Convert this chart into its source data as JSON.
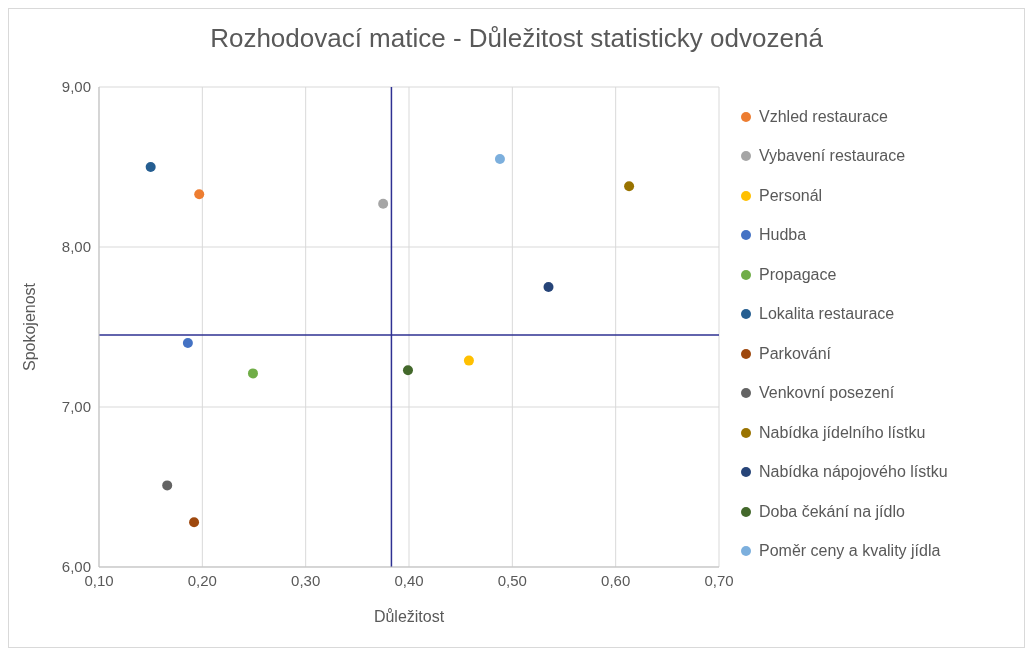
{
  "chart_data": {
    "type": "scatter",
    "title": "Rozhodovací matice - Důležitost statisticky odvozená",
    "xlabel": "Důležitost",
    "ylabel": "Spokojenost",
    "xlim": [
      0.1,
      0.7
    ],
    "xticks": [
      {
        "value": 0.1,
        "label": "0,10"
      },
      {
        "value": 0.2,
        "label": "0,20"
      },
      {
        "value": 0.3,
        "label": "0,30"
      },
      {
        "value": 0.4,
        "label": "0,40"
      },
      {
        "value": 0.5,
        "label": "0,50"
      },
      {
        "value": 0.6,
        "label": "0,60"
      },
      {
        "value": 0.7,
        "label": "0,70"
      }
    ],
    "ylim": [
      6,
      9
    ],
    "yticks": [
      {
        "value": 6,
        "label": "6,00"
      },
      {
        "value": 7,
        "label": "7,00"
      },
      {
        "value": 8,
        "label": "8,00"
      },
      {
        "value": 9,
        "label": "9,00"
      }
    ],
    "grid": true,
    "legend": "right",
    "marker": "circle",
    "ref_lines": [
      {
        "axis": "x",
        "value": 0.383,
        "color": "#2e3192"
      },
      {
        "axis": "y",
        "value": 7.45,
        "color": "#2e3192"
      }
    ],
    "series": [
      {
        "name": "Vzhled restaurace",
        "color": "#ed7d31",
        "x": [
          0.197
        ],
        "values": [
          8.33
        ]
      },
      {
        "name": "Vybavení restaurace",
        "color": "#a5a5a5",
        "x": [
          0.375
        ],
        "values": [
          8.27
        ]
      },
      {
        "name": "Personál",
        "color": "#ffc000",
        "x": [
          0.458
        ],
        "values": [
          7.29
        ]
      },
      {
        "name": "Hudba",
        "color": "#4472c4",
        "x": [
          0.186
        ],
        "values": [
          7.4
        ]
      },
      {
        "name": "Propagace",
        "color": "#70ad47",
        "x": [
          0.249
        ],
        "values": [
          7.21
        ]
      },
      {
        "name": "Lokalita restaurace",
        "color": "#255e91",
        "x": [
          0.15
        ],
        "values": [
          8.5
        ]
      },
      {
        "name": "Parkování",
        "color": "#9e480e",
        "x": [
          0.192
        ],
        "values": [
          6.28
        ]
      },
      {
        "name": "Venkovní posezení",
        "color": "#636363",
        "x": [
          0.166
        ],
        "values": [
          6.51
        ]
      },
      {
        "name": "Nabídka jídelního lístku",
        "color": "#997300",
        "x": [
          0.613
        ],
        "values": [
          8.38
        ]
      },
      {
        "name": "Nabídka nápojového lístku",
        "color": "#264478",
        "x": [
          0.535
        ],
        "values": [
          7.75
        ]
      },
      {
        "name": "Doba čekání na jídlo",
        "color": "#43682b",
        "x": [
          0.399
        ],
        "values": [
          7.23
        ]
      },
      {
        "name": "Poměr ceny a kvality jídla",
        "color": "#7cafdd",
        "x": [
          0.488
        ],
        "values": [
          8.55
        ]
      }
    ]
  }
}
